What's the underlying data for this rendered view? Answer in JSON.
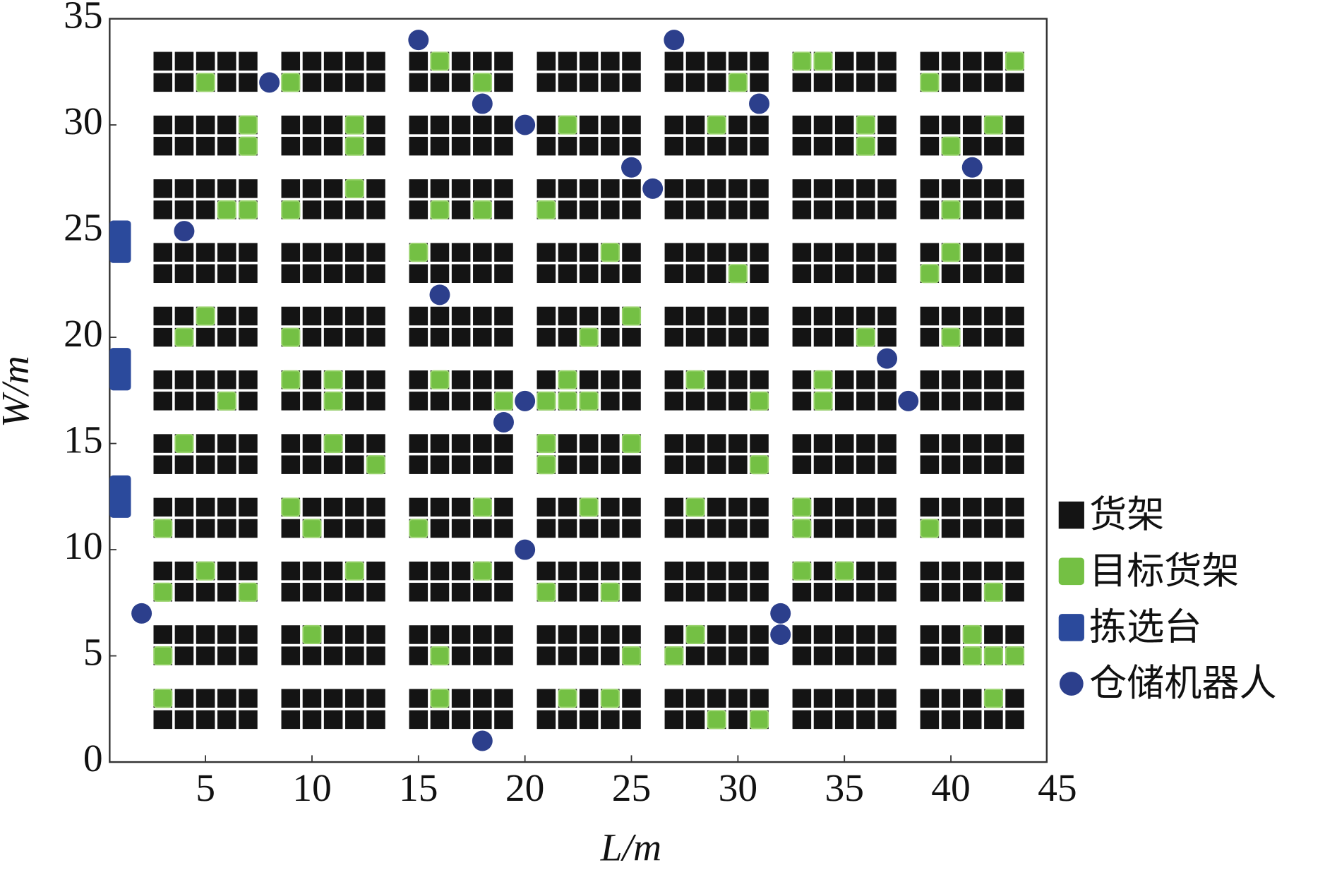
{
  "chart_data": {
    "type": "scatter",
    "x_label": "L/m",
    "y_label": "W/m",
    "xlim": [
      0.5,
      44.5
    ],
    "ylim": [
      0,
      35
    ],
    "xticks": [
      5,
      10,
      15,
      20,
      25,
      30,
      35,
      40,
      45
    ],
    "yticks": [
      0,
      5,
      10,
      15,
      20,
      25,
      30,
      35
    ],
    "grid": false,
    "legend": "right",
    "series": [
      {
        "name": "货架",
        "color": "#141414",
        "marker": "cell",
        "x_ranges": [
          [
            3,
            7
          ],
          [
            9,
            13
          ],
          [
            15,
            19
          ],
          [
            21,
            25
          ],
          [
            27,
            31
          ],
          [
            33,
            37
          ],
          [
            39,
            43
          ]
        ],
        "y_ranges": [
          [
            32,
            33
          ],
          [
            29,
            30
          ],
          [
            26,
            27
          ],
          [
            23,
            24
          ],
          [
            20,
            21
          ],
          [
            17,
            18
          ],
          [
            14,
            15
          ],
          [
            11,
            12
          ],
          [
            8,
            9
          ],
          [
            5,
            6
          ],
          [
            2,
            3
          ]
        ]
      },
      {
        "name": "目标货架",
        "color": "#74c044",
        "marker": "square",
        "x": [
          16,
          33,
          34,
          43,
          5,
          9,
          18,
          30,
          39,
          7,
          12,
          22,
          29,
          36,
          42,
          7,
          12,
          36,
          40,
          12,
          6,
          7,
          9,
          16,
          18,
          21,
          40,
          15,
          24,
          40,
          30,
          39,
          5,
          25,
          4,
          9,
          23,
          36,
          40,
          9,
          11,
          16,
          22,
          28,
          34,
          6,
          11,
          19,
          21,
          22,
          23,
          31,
          34,
          4,
          11,
          21,
          25,
          13,
          21,
          31,
          9,
          18,
          23,
          28,
          33,
          3,
          10,
          15,
          33,
          39,
          5,
          12,
          18,
          33,
          35,
          3,
          7,
          21,
          24,
          42,
          10,
          28,
          41,
          3,
          16,
          25,
          27,
          41,
          42,
          43,
          3,
          16,
          22,
          24,
          42,
          29,
          31
        ],
        "y": [
          33,
          33,
          33,
          33,
          32,
          32,
          32,
          32,
          32,
          30,
          30,
          30,
          30,
          30,
          30,
          29,
          29,
          29,
          29,
          27,
          26,
          26,
          26,
          26,
          26,
          26,
          26,
          24,
          24,
          24,
          23,
          23,
          21,
          21,
          20,
          20,
          20,
          20,
          20,
          18,
          18,
          18,
          18,
          18,
          18,
          17,
          17,
          17,
          17,
          17,
          17,
          17,
          17,
          15,
          15,
          15,
          15,
          14,
          14,
          14,
          12,
          12,
          12,
          12,
          12,
          11,
          11,
          11,
          11,
          11,
          9,
          9,
          9,
          9,
          9,
          8,
          8,
          8,
          8,
          8,
          6,
          6,
          6,
          5,
          5,
          5,
          5,
          5,
          5,
          5,
          3,
          3,
          3,
          3,
          3,
          2,
          2
        ]
      },
      {
        "name": "拣选台",
        "color": "#2b4a9c",
        "marker": "rect",
        "x": [
          1,
          1,
          1
        ],
        "y": [
          24.5,
          18.5,
          12.5
        ]
      },
      {
        "name": "仓储机器人",
        "color": "#2c3f8c",
        "marker": "circle",
        "x": [
          15,
          27,
          8,
          18,
          20,
          31,
          25,
          26,
          41,
          4,
          16,
          37,
          38,
          20,
          19,
          20,
          2,
          32,
          32,
          18
        ],
        "y": [
          34,
          34,
          32,
          31,
          30,
          31,
          28,
          27,
          28,
          25,
          22,
          19,
          17,
          17,
          16,
          10,
          7,
          7,
          6,
          1
        ]
      }
    ]
  }
}
